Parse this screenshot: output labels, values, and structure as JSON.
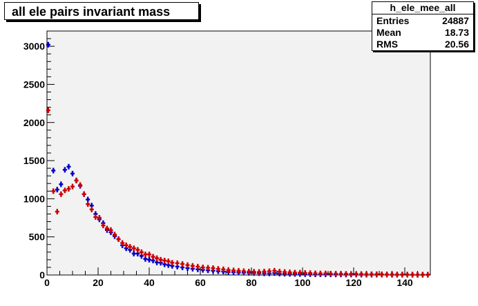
{
  "chart_data": {
    "type": "scatter",
    "title": "all ele pairs invariant mass",
    "xlabel": "",
    "ylabel": "",
    "xlim": [
      0,
      150
    ],
    "ylim": [
      0,
      3200
    ],
    "x_ticks": [
      0,
      20,
      40,
      60,
      80,
      100,
      120,
      140
    ],
    "y_ticks": [
      0,
      500,
      1000,
      1500,
      2000,
      2500,
      3000
    ],
    "grid": false,
    "legend": "none",
    "stats": {
      "name": "h_ele_mee_all",
      "rows": [
        {
          "label": "Entries",
          "value": "24887"
        },
        {
          "label": "Mean",
          "value": "18.73"
        },
        {
          "label": "RMS",
          "value": "20.56"
        }
      ]
    },
    "series": [
      {
        "color": "#0000cc",
        "x": [
          0.5,
          2.5,
          4,
          5.5,
          7,
          8.5,
          10,
          11.5,
          13,
          14.5,
          16,
          17.5,
          19,
          20.5,
          22,
          23.5,
          25,
          26.5,
          28,
          29.5,
          31,
          32.5,
          34,
          35.5,
          37,
          38.5,
          40,
          41.5,
          43,
          44.5,
          46,
          47.5,
          49,
          51,
          53,
          55,
          57,
          59,
          61,
          63,
          65,
          67,
          69,
          71,
          73,
          75,
          77,
          79,
          81,
          83,
          85,
          87,
          89,
          91,
          93,
          95,
          97,
          99,
          101,
          103,
          105,
          107,
          109,
          111,
          113,
          115,
          117,
          119,
          121,
          123,
          125,
          127,
          129,
          131,
          133,
          135,
          137,
          139,
          141,
          143,
          145,
          147,
          149
        ],
        "y": [
          3020,
          1370,
          1120,
          1190,
          1380,
          1420,
          1330,
          1240,
          1170,
          1060,
          990,
          910,
          800,
          730,
          680,
          590,
          560,
          510,
          470,
          390,
          350,
          330,
          280,
          280,
          250,
          210,
          200,
          190,
          165,
          160,
          140,
          130,
          120,
          110,
          100,
          90,
          82,
          75,
          68,
          62,
          56,
          50,
          45,
          40,
          36,
          32,
          30,
          28,
          26,
          24,
          22,
          20,
          25,
          18,
          16,
          15,
          14,
          12,
          11,
          10,
          9,
          9,
          8,
          8,
          7,
          7,
          6,
          6,
          6,
          5,
          5,
          5,
          4,
          4,
          4,
          3,
          3,
          3,
          3,
          2,
          2,
          2,
          2
        ]
      },
      {
        "color": "#cc0000",
        "x": [
          0.5,
          2.5,
          4,
          5.5,
          7,
          8.5,
          10,
          11.5,
          13,
          14.5,
          16,
          17.5,
          19,
          20.5,
          22,
          23.5,
          25,
          26.5,
          28,
          29.5,
          31,
          32.5,
          34,
          35.5,
          37,
          38.5,
          40,
          41.5,
          43,
          44.5,
          46,
          47.5,
          49,
          51,
          53,
          55,
          57,
          59,
          61,
          63,
          65,
          67,
          69,
          71,
          73,
          75,
          77,
          79,
          81,
          83,
          85,
          87,
          89,
          91,
          93,
          95,
          97,
          99,
          101,
          103,
          105,
          107,
          109,
          111,
          113,
          115,
          117,
          119,
          121,
          123,
          125,
          127,
          129,
          131,
          133,
          135,
          137,
          139,
          141,
          143,
          145,
          147,
          149
        ],
        "y": [
          2160,
          1100,
          830,
          1060,
          1110,
          1130,
          1160,
          1240,
          1180,
          1060,
          930,
          860,
          760,
          750,
          650,
          610,
          590,
          530,
          470,
          420,
          390,
          370,
          350,
          330,
          300,
          270,
          270,
          240,
          220,
          200,
          190,
          180,
          160,
          155,
          145,
          130,
          120,
          110,
          100,
          95,
          90,
          80,
          75,
          65,
          60,
          55,
          50,
          45,
          42,
          40,
          45,
          50,
          55,
          45,
          40,
          35,
          32,
          30,
          27,
          25,
          22,
          20,
          20,
          18,
          17,
          15,
          15,
          14,
          13,
          12,
          11,
          10,
          10,
          9,
          8,
          8,
          7,
          7,
          6,
          6,
          5,
          5,
          5
        ]
      }
    ]
  }
}
